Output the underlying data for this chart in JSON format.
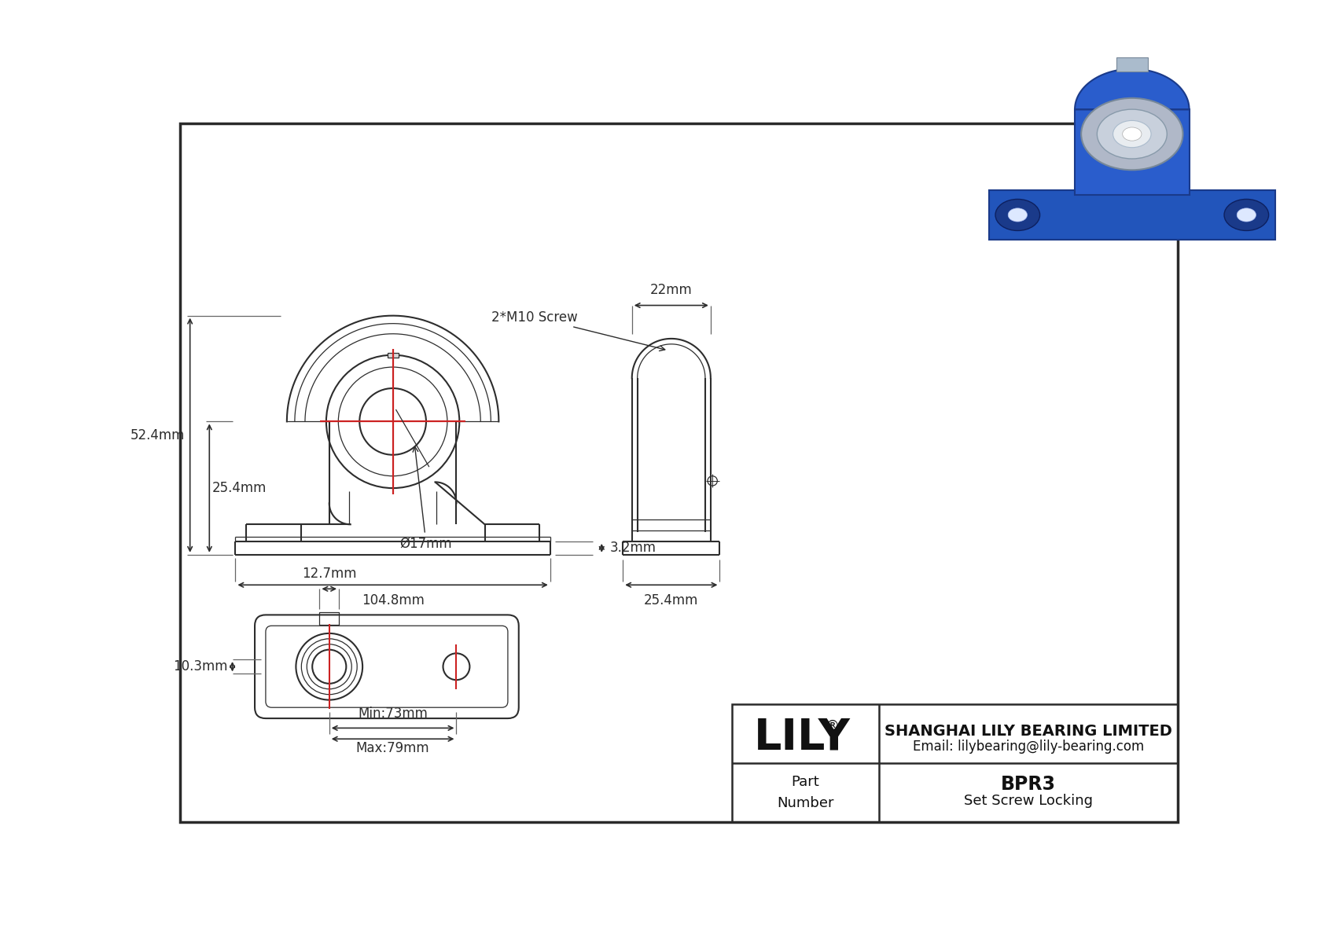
{
  "bg_color": "#ffffff",
  "line_color": "#2d2d2d",
  "red_color": "#cc2222",
  "dim_color": "#1a1a1a",
  "title_block": {
    "company": "SHANGHAI LILY BEARING LIMITED",
    "email": "Email: lilybearing@lily-bearing.com",
    "part_label": "Part\nNumber",
    "part_number": "BPR3",
    "part_desc": "Set Screw Locking",
    "logo": "LILY",
    "logo_reg": "®"
  },
  "dims": {
    "front_height": "52.4mm",
    "front_center_height": "25.4mm",
    "front_width": "104.8mm",
    "bore_dia": "Ø17mm",
    "base_thickness": "3.2mm",
    "side_width": "22mm",
    "side_screw": "2*M10 Screw",
    "side_base_width": "25.4mm",
    "top_bolt_span_min": "Min:73mm",
    "top_bolt_span_max": "Max:79mm",
    "top_housing_width": "12.7mm",
    "top_shaft_dia": "10.3mm"
  }
}
